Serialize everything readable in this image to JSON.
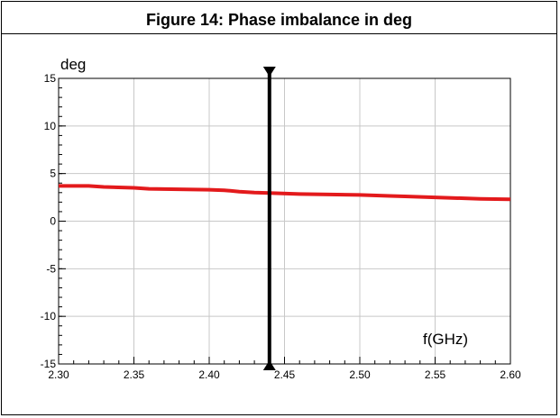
{
  "figure": {
    "title": "Figure 14: Phase imbalance in deg"
  },
  "chart_data": {
    "type": "line",
    "title": "Figure 14: Phase imbalance in deg",
    "ylabel": "deg",
    "xlabel": "f(GHz)",
    "xlim": [
      2.3,
      2.6
    ],
    "ylim": [
      -15,
      15
    ],
    "xticks": [
      "2.30",
      "2.35",
      "2.40",
      "2.45",
      "2.50",
      "2.55",
      "2.60"
    ],
    "yticks": [
      "15",
      "10",
      "5",
      "0",
      "-5",
      "-10",
      "-15"
    ],
    "grid": true,
    "marker": {
      "x": 2.44
    },
    "series": [
      {
        "color": "#e31a1c",
        "x": [
          2.3,
          2.32,
          2.33,
          2.35,
          2.36,
          2.38,
          2.4,
          2.41,
          2.42,
          2.43,
          2.44,
          2.46,
          2.48,
          2.5,
          2.52,
          2.53,
          2.55,
          2.58,
          2.6
        ],
        "y": [
          3.7,
          3.7,
          3.6,
          3.5,
          3.4,
          3.35,
          3.3,
          3.25,
          3.1,
          3.0,
          2.95,
          2.85,
          2.8,
          2.75,
          2.65,
          2.6,
          2.5,
          2.35,
          2.3
        ]
      }
    ]
  }
}
